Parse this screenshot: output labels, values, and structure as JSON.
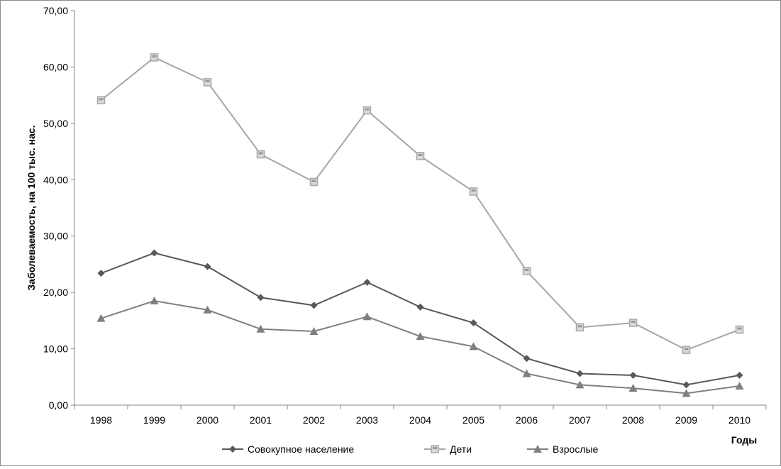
{
  "chart_data": {
    "type": "line",
    "title": "",
    "xlabel": "Годы",
    "ylabel": "Заболеваемость, на 100 тыс. нас.",
    "categories": [
      "1998",
      "1999",
      "2000",
      "2001",
      "2002",
      "2003",
      "2004",
      "2005",
      "2006",
      "2007",
      "2008",
      "2009",
      "2010"
    ],
    "ylim": [
      0,
      70
    ],
    "yticks": [
      "0,00",
      "10,00",
      "20,00",
      "30,00",
      "40,00",
      "50,00",
      "60,00",
      "70,00"
    ],
    "grid": false,
    "legend_position": "bottom",
    "series": [
      {
        "name": "Совокупное население",
        "marker": "diamond",
        "color": "#595959",
        "values": [
          23.4,
          27.0,
          24.6,
          19.1,
          17.7,
          21.8,
          17.4,
          14.6,
          8.3,
          5.6,
          5.3,
          3.6,
          5.3
        ]
      },
      {
        "name": "Дети",
        "marker": "square",
        "color": "#a6a6a6",
        "values": [
          54.1,
          61.7,
          57.3,
          44.5,
          39.6,
          52.3,
          44.2,
          37.9,
          23.8,
          13.8,
          14.6,
          9.8,
          13.4
        ]
      },
      {
        "name": "Взрослые",
        "marker": "triangle",
        "color": "#7f7f7f",
        "values": [
          15.4,
          18.5,
          16.9,
          13.5,
          13.1,
          15.7,
          12.2,
          10.4,
          5.6,
          3.6,
          3.0,
          2.1,
          3.4
        ]
      }
    ]
  }
}
